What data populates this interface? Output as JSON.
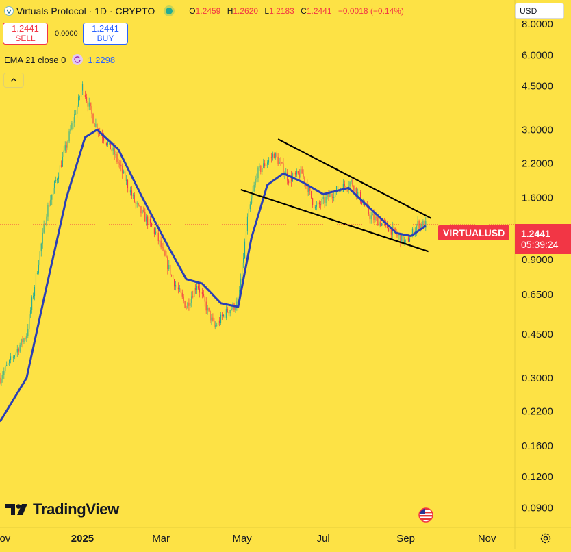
{
  "header": {
    "symbol_title": "Virtuals Protocol · 1D · CRYPTO",
    "ohlc": {
      "o_label": "O",
      "o": "1.2459",
      "h_label": "H",
      "h": "1.2620",
      "l_label": "L",
      "l": "1.2183",
      "c_label": "C",
      "c": "1.2441",
      "change": "−0.0018 (−0.14%)"
    }
  },
  "trade": {
    "sell_price": "1.2441",
    "sell_label": "SELL",
    "spread": "0.0000",
    "buy_price": "1.2441",
    "buy_label": "BUY"
  },
  "indicator": {
    "label": "EMA 21 close 0",
    "value": "1.2298"
  },
  "currency_select": "USD",
  "price_label": {
    "symbol": "VIRTUALUSD",
    "price": "1.2441",
    "countdown": "05:39:24"
  },
  "branding": {
    "logo_text": "TradingView"
  },
  "colors": {
    "background": "#fde245",
    "up": "#22ab94",
    "down": "#f23645",
    "ema": "#2a3fb5",
    "trendline": "#000000"
  },
  "icons": [
    "tradingview-logo-icon",
    "us-flag-icon",
    "settings-gear-icon",
    "status-dot-icon",
    "ema-cycle-icon",
    "chevron-up-icon"
  ],
  "chart_data": {
    "type": "candlestick",
    "y_scale": "log",
    "ylim": [
      0.075,
      10
    ],
    "y_ticks": [
      "8.0000",
      "6.0000",
      "4.5000",
      "3.0000",
      "2.2000",
      "1.6000",
      "0.9000",
      "0.6500",
      "0.4500",
      "0.3000",
      "0.2200",
      "0.1600",
      "0.1200",
      "0.0900"
    ],
    "y_tick_values": [
      8,
      6,
      4.5,
      3,
      2.2,
      1.6,
      0.9,
      0.65,
      0.45,
      0.3,
      0.22,
      0.16,
      0.12,
      0.09
    ],
    "x_ticks": [
      "Nov",
      "2025",
      "Mar",
      "May",
      "Jul",
      "Sep",
      "Nov"
    ],
    "x_tick_dates": [
      "2024-11-01",
      "2025-01-01",
      "2025-03-01",
      "2025-05-01",
      "2025-07-01",
      "2025-09-01",
      "2025-11-01"
    ],
    "x_range": [
      "2024-10-31",
      "2025-11-22"
    ],
    "last_price": 1.2441,
    "grid": false,
    "price_anchors": [
      {
        "date": "2024-10-31",
        "close": 0.3
      },
      {
        "date": "2024-11-20",
        "close": 0.45
      },
      {
        "date": "2024-12-05",
        "close": 1.4
      },
      {
        "date": "2024-12-20",
        "close": 2.6
      },
      {
        "date": "2025-01-01",
        "close": 4.5
      },
      {
        "date": "2025-01-10",
        "close": 3.2
      },
      {
        "date": "2025-01-25",
        "close": 2.4
      },
      {
        "date": "2025-02-10",
        "close": 1.5
      },
      {
        "date": "2025-02-25",
        "close": 1.15
      },
      {
        "date": "2025-03-10",
        "close": 0.75
      },
      {
        "date": "2025-03-20",
        "close": 0.58
      },
      {
        "date": "2025-03-28",
        "close": 0.72
      },
      {
        "date": "2025-04-10",
        "close": 0.48
      },
      {
        "date": "2025-04-20",
        "close": 0.56
      },
      {
        "date": "2025-04-28",
        "close": 0.6
      },
      {
        "date": "2025-05-05",
        "close": 1.3
      },
      {
        "date": "2025-05-12",
        "close": 2.0
      },
      {
        "date": "2025-05-25",
        "close": 2.4
      },
      {
        "date": "2025-06-05",
        "close": 1.9
      },
      {
        "date": "2025-06-15",
        "close": 2.0
      },
      {
        "date": "2025-06-25",
        "close": 1.45
      },
      {
        "date": "2025-07-10",
        "close": 1.7
      },
      {
        "date": "2025-07-22",
        "close": 1.85
      },
      {
        "date": "2025-08-05",
        "close": 1.35
      },
      {
        "date": "2025-08-20",
        "close": 1.2
      },
      {
        "date": "2025-09-01",
        "close": 1.05
      },
      {
        "date": "2025-09-10",
        "close": 1.25
      },
      {
        "date": "2025-09-16",
        "close": 1.2441
      }
    ],
    "ema_anchors": [
      {
        "date": "2024-10-31",
        "value": 0.2
      },
      {
        "date": "2024-11-20",
        "value": 0.3
      },
      {
        "date": "2024-12-05",
        "value": 0.7
      },
      {
        "date": "2024-12-20",
        "value": 1.6
      },
      {
        "date": "2025-01-03",
        "value": 2.8
      },
      {
        "date": "2025-01-12",
        "value": 3.0
      },
      {
        "date": "2025-01-28",
        "value": 2.5
      },
      {
        "date": "2025-02-15",
        "value": 1.6
      },
      {
        "date": "2025-03-05",
        "value": 1.05
      },
      {
        "date": "2025-03-20",
        "value": 0.75
      },
      {
        "date": "2025-04-01",
        "value": 0.72
      },
      {
        "date": "2025-04-15",
        "value": 0.6
      },
      {
        "date": "2025-04-28",
        "value": 0.58
      },
      {
        "date": "2025-05-08",
        "value": 1.1
      },
      {
        "date": "2025-05-20",
        "value": 1.8
      },
      {
        "date": "2025-06-01",
        "value": 2.0
      },
      {
        "date": "2025-06-15",
        "value": 1.85
      },
      {
        "date": "2025-07-01",
        "value": 1.65
      },
      {
        "date": "2025-07-20",
        "value": 1.75
      },
      {
        "date": "2025-08-05",
        "value": 1.45
      },
      {
        "date": "2025-08-25",
        "value": 1.15
      },
      {
        "date": "2025-09-05",
        "value": 1.12
      },
      {
        "date": "2025-09-16",
        "value": 1.2298
      }
    ],
    "trendlines": [
      {
        "name": "upper",
        "from": {
          "date": "2025-05-28",
          "price": 2.75
        },
        "to": {
          "date": "2025-09-20",
          "price": 1.32
        }
      },
      {
        "name": "lower",
        "from": {
          "date": "2025-04-30",
          "price": 1.72
        },
        "to": {
          "date": "2025-09-18",
          "price": 0.97
        }
      }
    ]
  }
}
